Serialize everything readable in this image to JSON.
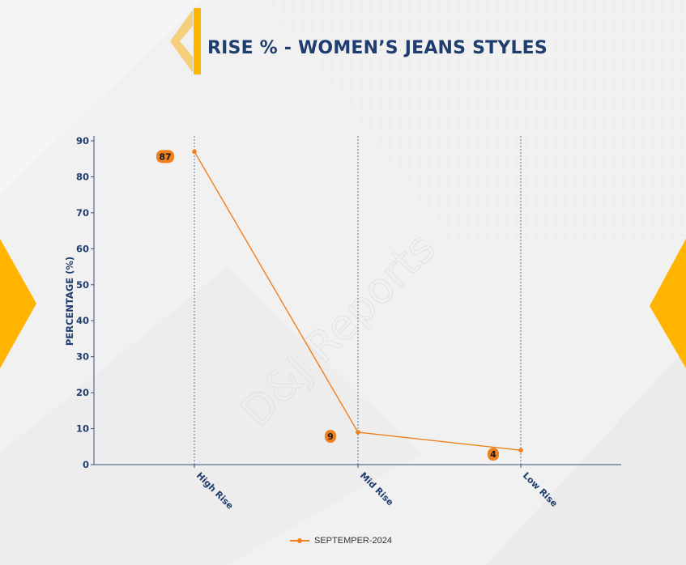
{
  "title": "RISE % - WOMEN’S JEANS STYLES",
  "watermark": "D&J Reports",
  "colors": {
    "accent": "#f07f1e",
    "title": "#1f3d6e",
    "brand_yellow": "#ffb400",
    "axis": "#3a4f77"
  },
  "chart_data": {
    "type": "line",
    "categories": [
      "High Rise",
      "Mid Rise",
      "Low Rise"
    ],
    "series": [
      {
        "name": "SEPTEMPER-2024",
        "values": [
          87,
          9,
          4
        ]
      }
    ],
    "ylabel": "PERCENTAGE (%)",
    "xlabel": "",
    "ylim": [
      0,
      90
    ],
    "yticks": [
      0,
      10,
      20,
      30,
      40,
      50,
      60,
      70,
      80,
      90
    ],
    "grid": "vertical dashed at categories",
    "legend": "bottom-center"
  }
}
